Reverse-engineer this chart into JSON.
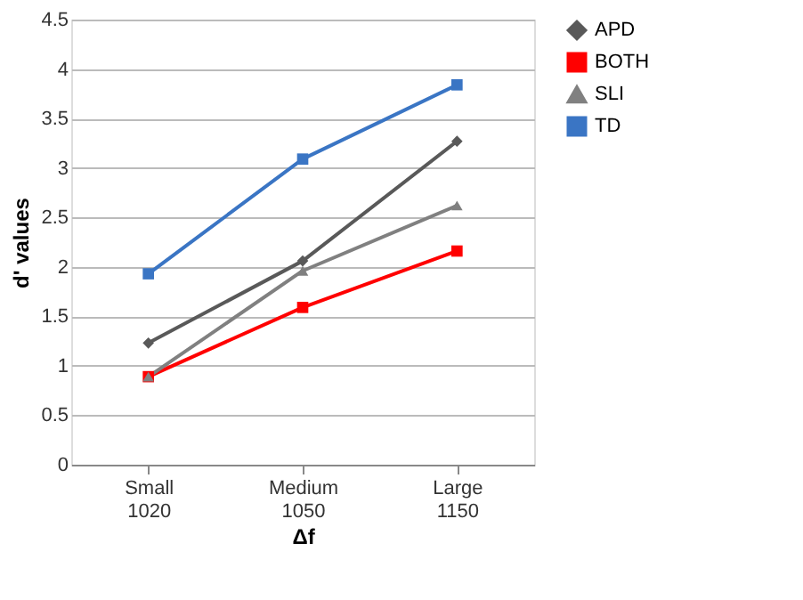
{
  "chart_data": {
    "type": "line",
    "xlabel": "Δf",
    "ylabel": "d' values",
    "categories": [
      "Small\n1020",
      "Medium\n1050",
      "Large\n1150"
    ],
    "series": [
      {
        "name": "APD",
        "color": "#595959",
        "marker": "diamond",
        "values": [
          1.23,
          2.06,
          3.27
        ]
      },
      {
        "name": "BOTH",
        "color": "#ff0000",
        "marker": "square",
        "values": [
          0.89,
          1.59,
          2.16
        ]
      },
      {
        "name": "SLI",
        "color": "#808080",
        "marker": "triangle",
        "values": [
          0.89,
          1.96,
          2.62
        ]
      },
      {
        "name": "TD",
        "color": "#3a75c4",
        "marker": "square",
        "values": [
          1.93,
          3.09,
          3.84
        ]
      }
    ],
    "ylim": [
      0,
      4.5
    ],
    "yticks": [
      0,
      0.5,
      1,
      1.5,
      2,
      2.5,
      3,
      3.5,
      4,
      4.5
    ],
    "grid": "y",
    "legend": "right"
  }
}
